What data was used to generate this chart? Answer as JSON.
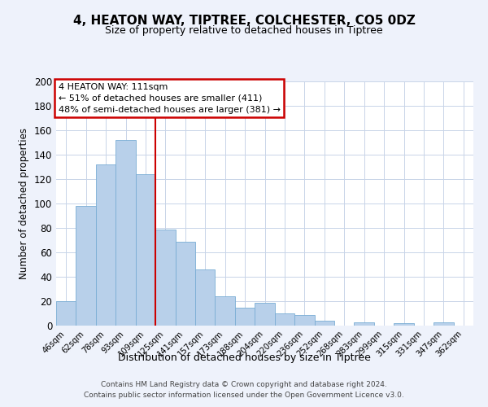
{
  "title": "4, HEATON WAY, TIPTREE, COLCHESTER, CO5 0DZ",
  "subtitle": "Size of property relative to detached houses in Tiptree",
  "xlabel": "Distribution of detached houses by size in Tiptree",
  "ylabel": "Number of detached properties",
  "bar_labels": [
    "46sqm",
    "62sqm",
    "78sqm",
    "93sqm",
    "109sqm",
    "125sqm",
    "141sqm",
    "157sqm",
    "173sqm",
    "188sqm",
    "204sqm",
    "220sqm",
    "236sqm",
    "252sqm",
    "268sqm",
    "283sqm",
    "299sqm",
    "315sqm",
    "331sqm",
    "347sqm",
    "362sqm"
  ],
  "bar_values": [
    20,
    98,
    132,
    152,
    124,
    79,
    69,
    46,
    24,
    15,
    19,
    10,
    9,
    4,
    0,
    3,
    0,
    2,
    0,
    3,
    0
  ],
  "bar_color": "#b8d0ea",
  "bar_edge_color": "#7aadd4",
  "highlight_line_color": "#cc0000",
  "annotation_title": "4 HEATON WAY: 111sqm",
  "annotation_line1": "← 51% of detached houses are smaller (411)",
  "annotation_line2": "48% of semi-detached houses are larger (381) →",
  "annotation_box_color": "#ffffff",
  "annotation_box_edge": "#cc0000",
  "ylim": [
    0,
    200
  ],
  "yticks": [
    0,
    20,
    40,
    60,
    80,
    100,
    120,
    140,
    160,
    180,
    200
  ],
  "footer_line1": "Contains HM Land Registry data © Crown copyright and database right 2024.",
  "footer_line2": "Contains public sector information licensed under the Open Government Licence v3.0.",
  "bg_color": "#eef2fb",
  "plot_bg_color": "#ffffff",
  "grid_color": "#c8d4e8",
  "red_line_index": 4.5
}
